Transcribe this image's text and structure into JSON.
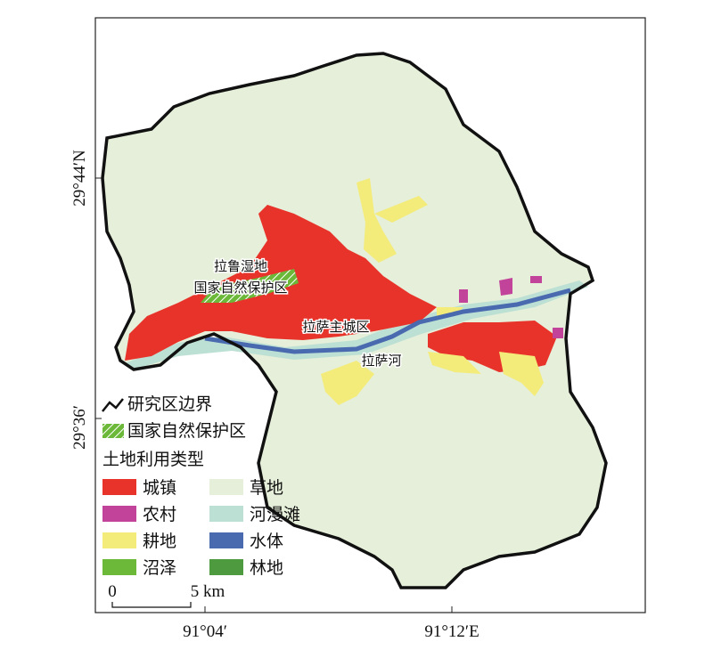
{
  "map": {
    "axes": {
      "left": [
        "29°44′N",
        "29°36′"
      ],
      "bottom": [
        "91°04′",
        "91°12′E"
      ]
    },
    "annotations": [
      "拉鲁湿地",
      "国家自然保护区",
      "拉萨主城区",
      "拉萨河"
    ],
    "legend": {
      "boundary": "研究区边界",
      "reserve": "国家自然保护区",
      "land_use_title": "土地利用类型",
      "classes": [
        {
          "label": "城镇",
          "color": "#e8332b"
        },
        {
          "label": "草地",
          "color": "#e6efd9"
        },
        {
          "label": "农村",
          "color": "#c2449a"
        },
        {
          "label": "河漫滩",
          "color": "#bde0d4"
        },
        {
          "label": "耕地",
          "color": "#f3ec7a"
        },
        {
          "label": "水体",
          "color": "#4a6ab0"
        },
        {
          "label": "沼泽",
          "color": "#6cb93a"
        },
        {
          "label": "林地",
          "color": "#4e9a3e"
        }
      ]
    },
    "scale_bar": {
      "start": "0",
      "end": "5 km"
    }
  }
}
